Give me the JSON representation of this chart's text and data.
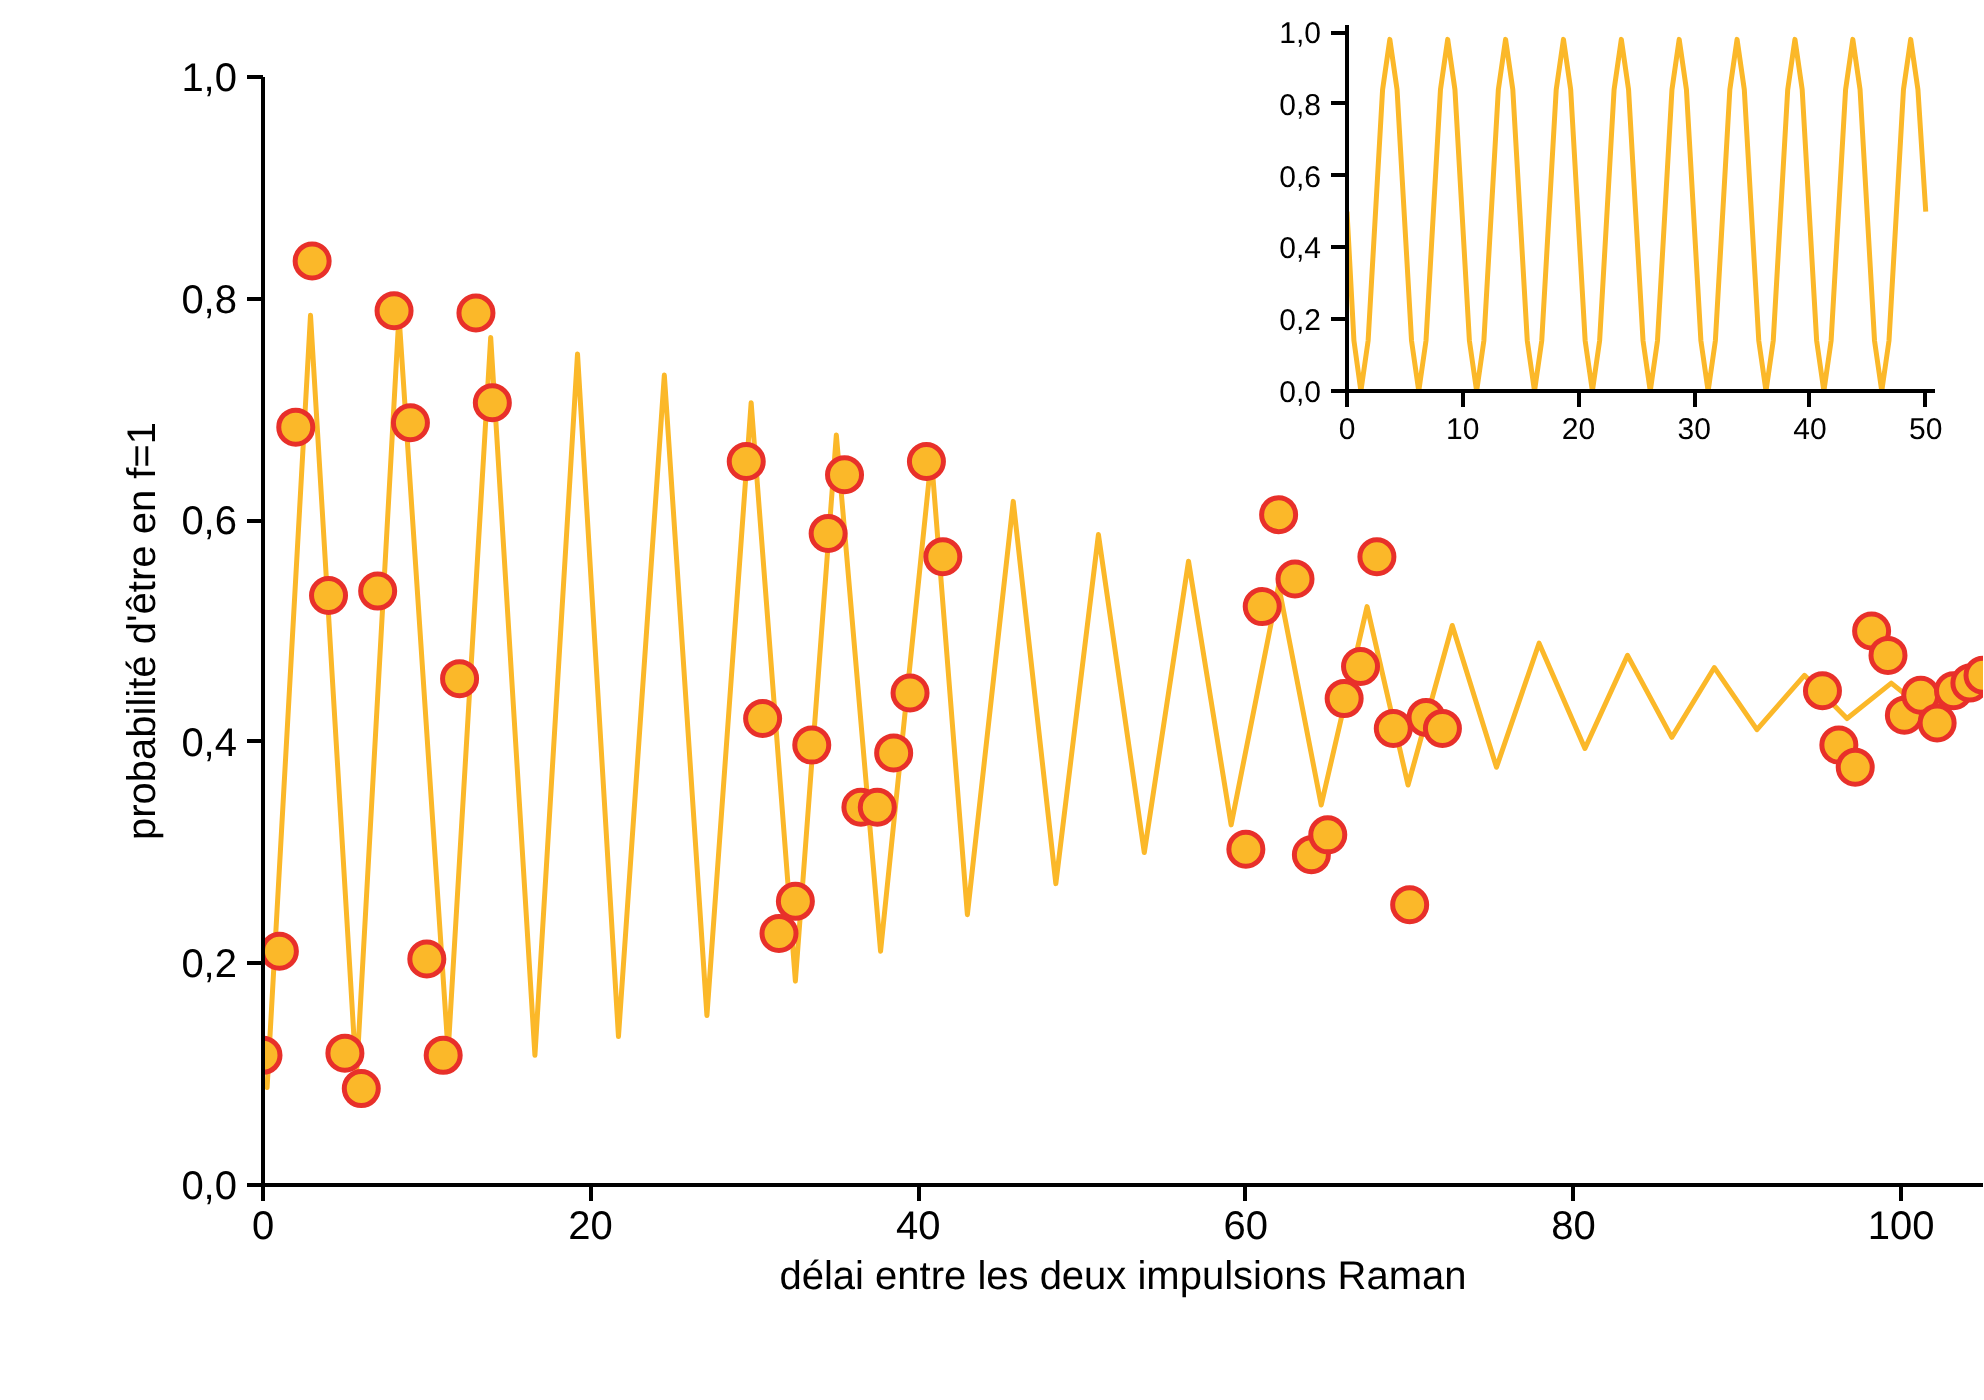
{
  "chart_data": [
    {
      "type": "line",
      "xlabel": "délai entre les deux impulsions Raman",
      "ylabel": "probabilité d'être en f=1",
      "xlim": [
        0,
        105
      ],
      "ylim": [
        0,
        1.0
      ],
      "xticks": [
        0,
        20,
        40,
        60,
        80,
        100
      ],
      "yticks": [
        {
          "value": 0,
          "label": "0,0"
        },
        {
          "value": 0.2,
          "label": "0,2"
        },
        {
          "value": 0.4,
          "label": "0,4"
        },
        {
          "value": 0.6,
          "label": "0,6"
        },
        {
          "value": 0.8,
          "label": "0,8"
        },
        {
          "value": 1.0,
          "label": "1,0"
        }
      ],
      "series": [
        {
          "type": "line",
          "color": "#fbb829",
          "x": [
            0,
            0.25,
            2.9,
            5.7,
            8.3,
            11.3,
            13.9,
            16.6,
            19.2,
            21.7,
            24.5,
            27.1,
            29.8,
            32.5,
            35.0,
            37.7,
            40.8,
            43.0,
            45.8,
            48.4,
            51.0,
            53.8,
            56.5,
            59.1,
            62.0,
            64.6,
            67.4,
            69.9,
            72.6,
            75.3,
            77.9,
            80.7,
            83.3,
            86.0,
            88.6,
            91.2,
            94.1,
            96.7,
            99.4,
            101.5,
            105
          ],
          "values": [
            0.09,
            0.088,
            0.785,
            0.097,
            0.785,
            0.12,
            0.765,
            0.117,
            0.75,
            0.134,
            0.731,
            0.153,
            0.706,
            0.184,
            0.677,
            0.211,
            0.657,
            0.244,
            0.617,
            0.272,
            0.587,
            0.3,
            0.563,
            0.325,
            0.541,
            0.343,
            0.522,
            0.361,
            0.505,
            0.377,
            0.489,
            0.394,
            0.478,
            0.404,
            0.467,
            0.411,
            0.46,
            0.421,
            0.453,
            0.428,
            0.462
          ]
        },
        {
          "type": "scatter",
          "color": "#fbb829",
          "marker": "circle",
          "x": [
            0,
            1,
            2,
            3,
            4,
            5,
            6,
            7,
            8,
            9,
            10,
            11,
            12,
            13,
            14,
            29.5,
            30.5,
            31.5,
            32.5,
            33.5,
            34.5,
            35.5,
            36.5,
            37.5,
            38.5,
            39.5,
            40.5,
            41.5,
            60,
            61,
            62,
            63,
            64,
            65,
            66,
            67,
            68,
            69,
            70,
            71,
            72,
            95.2,
            96.2,
            97.2,
            98.2,
            99.2,
            100.2,
            101.2,
            102.2,
            103.2,
            104.2,
            105
          ],
          "values": [
            0.117,
            0.211,
            0.684,
            0.834,
            0.532,
            0.119,
            0.087,
            0.536,
            0.789,
            0.688,
            0.204,
            0.117,
            0.457,
            0.787,
            0.706,
            0.653,
            0.421,
            0.227,
            0.256,
            0.397,
            0.588,
            0.641,
            0.341,
            0.341,
            0.39,
            0.444,
            0.653,
            0.567,
            0.303,
            0.522,
            0.605,
            0.547,
            0.298,
            0.316,
            0.439,
            0.468,
            0.567,
            0.412,
            0.253,
            0.422,
            0.412,
            0.446,
            0.397,
            0.377,
            0.5,
            0.478,
            0.424,
            0.442,
            0.417,
            0.446,
            0.453,
            0.46
          ]
        }
      ]
    },
    {
      "type": "line",
      "color": "#fbb829",
      "xlim": [
        0,
        50.8
      ],
      "ylim": [
        0,
        1.02
      ],
      "xticks": [
        0,
        10,
        20,
        30,
        40,
        50
      ],
      "yticks": [
        {
          "value": 0,
          "label": "0,0"
        },
        {
          "value": 0.2,
          "label": "0,2"
        },
        {
          "value": 0.4,
          "label": "0,4"
        },
        {
          "value": 0.6,
          "label": "0,6"
        },
        {
          "value": 0.8,
          "label": "0,8"
        },
        {
          "value": 1.0,
          "label": "1,0"
        }
      ],
      "x": [
        0,
        0.6,
        1.2,
        1.825,
        2.45,
        3.075,
        3.7,
        4.325,
        4.95,
        5.575,
        6.2,
        6.825,
        7.45,
        8.075,
        8.7,
        9.325,
        9.95,
        10.575,
        11.2,
        11.825,
        12.45,
        13.075,
        13.7,
        14.325,
        14.95,
        15.575,
        16.2,
        16.825,
        17.45,
        18.075,
        18.7,
        19.325,
        19.95,
        20.575,
        21.2,
        21.825,
        22.45,
        23.075,
        23.7,
        24.325,
        24.95,
        25.575,
        26.2,
        26.825,
        27.45,
        28.075,
        28.7,
        29.325,
        29.95,
        30.575,
        31.2,
        31.825,
        32.45,
        33.075,
        33.7,
        34.325,
        34.95,
        35.575,
        36.2,
        36.825,
        37.45,
        38.075,
        38.7,
        39.325,
        39.95,
        40.575,
        41.2,
        41.825,
        42.45,
        43.075,
        43.7,
        44.325,
        44.95,
        45.575,
        46.2,
        46.825,
        47.45,
        48.075,
        48.7,
        49.325,
        50
      ],
      "values": [
        0.5,
        0.14,
        0,
        0.14,
        0.49,
        0.84,
        0.98,
        0.84,
        0.49,
        0.14,
        0,
        0.14,
        0.49,
        0.84,
        0.98,
        0.84,
        0.49,
        0.14,
        0,
        0.14,
        0.49,
        0.84,
        0.98,
        0.84,
        0.49,
        0.14,
        0,
        0.14,
        0.49,
        0.84,
        0.98,
        0.84,
        0.49,
        0.14,
        0,
        0.14,
        0.49,
        0.84,
        0.98,
        0.84,
        0.49,
        0.14,
        0,
        0.14,
        0.49,
        0.84,
        0.98,
        0.84,
        0.49,
        0.14,
        0,
        0.14,
        0.49,
        0.84,
        0.98,
        0.84,
        0.49,
        0.14,
        0,
        0.14,
        0.49,
        0.84,
        0.98,
        0.84,
        0.49,
        0.14,
        0,
        0.14,
        0.49,
        0.84,
        0.98,
        0.84,
        0.49,
        0.14,
        0,
        0.14,
        0.49,
        0.84,
        0.98,
        0.84,
        0.5
      ]
    }
  ]
}
